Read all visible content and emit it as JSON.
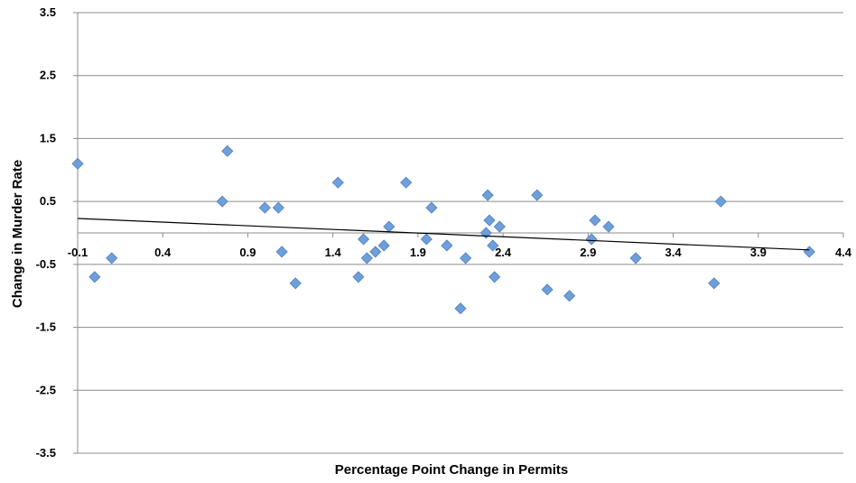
{
  "chart_data": {
    "type": "scatter",
    "xlabel": "Percentage Point Change in Permits",
    "ylabel": "Change in Murder Rate",
    "xlim": [
      -0.1,
      4.4
    ],
    "ylim": [
      -3.5,
      3.5
    ],
    "x_ticks": [
      "-0.1",
      "0.4",
      "0.9",
      "1.4",
      "1.9",
      "2.4",
      "2.9",
      "3.4",
      "3.9",
      "4.4"
    ],
    "y_ticks": [
      "3.5",
      "2.5",
      "1.5",
      "0.5",
      "-0.5",
      "-1.5",
      "-2.5",
      "-3.5"
    ],
    "grid": "horizontal",
    "legend": "none",
    "marker_color": "#6e9fd9",
    "marker_edge_color": "#4f7fbf",
    "trendline": {
      "type": "linear",
      "x": [
        -0.1,
        4.2
      ],
      "y": [
        0.23,
        -0.27
      ]
    },
    "points": [
      {
        "x": -0.1,
        "y": 1.1
      },
      {
        "x": 0.0,
        "y": -0.7
      },
      {
        "x": 0.1,
        "y": -0.4
      },
      {
        "x": 0.75,
        "y": 0.5
      },
      {
        "x": 0.78,
        "y": 1.3
      },
      {
        "x": 1.0,
        "y": 0.4
      },
      {
        "x": 1.08,
        "y": 0.4
      },
      {
        "x": 1.1,
        "y": -0.3
      },
      {
        "x": 1.18,
        "y": -0.8
      },
      {
        "x": 1.43,
        "y": 0.8
      },
      {
        "x": 1.55,
        "y": -0.7
      },
      {
        "x": 1.58,
        "y": -0.1
      },
      {
        "x": 1.6,
        "y": -0.4
      },
      {
        "x": 1.65,
        "y": -0.3
      },
      {
        "x": 1.7,
        "y": -0.2
      },
      {
        "x": 1.73,
        "y": 0.1
      },
      {
        "x": 1.83,
        "y": 0.8
      },
      {
        "x": 1.95,
        "y": -0.1
      },
      {
        "x": 1.98,
        "y": 0.4
      },
      {
        "x": 2.07,
        "y": -0.2
      },
      {
        "x": 2.15,
        "y": -1.2
      },
      {
        "x": 2.18,
        "y": -0.4
      },
      {
        "x": 2.3,
        "y": 0.0
      },
      {
        "x": 2.31,
        "y": 0.6
      },
      {
        "x": 2.32,
        "y": 0.2
      },
      {
        "x": 2.34,
        "y": -0.2
      },
      {
        "x": 2.35,
        "y": -0.7
      },
      {
        "x": 2.38,
        "y": 0.1
      },
      {
        "x": 2.6,
        "y": 0.6
      },
      {
        "x": 2.66,
        "y": -0.9
      },
      {
        "x": 2.79,
        "y": -1.0
      },
      {
        "x": 2.92,
        "y": -0.1
      },
      {
        "x": 2.94,
        "y": 0.2
      },
      {
        "x": 3.02,
        "y": 0.1
      },
      {
        "x": 3.18,
        "y": -0.4
      },
      {
        "x": 3.64,
        "y": -0.8
      },
      {
        "x": 3.68,
        "y": 0.5
      },
      {
        "x": 4.2,
        "y": -0.3
      }
    ]
  }
}
